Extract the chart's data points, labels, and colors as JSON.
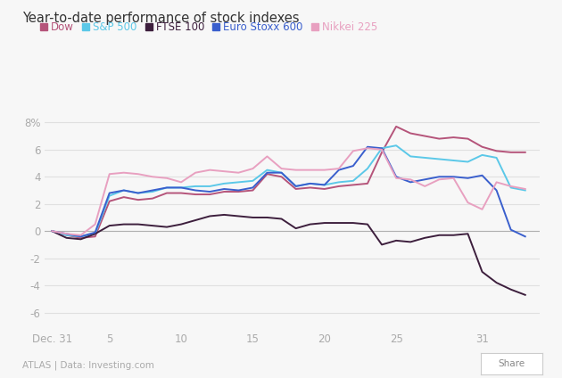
{
  "title": "Year-to-date performance of stock indexes",
  "legend": [
    "Dow",
    "S&P 500",
    "FTSE 100",
    "Euro Stoxx 600",
    "Nikkei 225"
  ],
  "colors": {
    "Dow": "#b5547a",
    "S&P 500": "#5bc8e8",
    "FTSE 100": "#3d1f3d",
    "Euro Stoxx 600": "#3a5fcd",
    "Nikkei 225": "#e8a0c0"
  },
  "x_ticks": [
    0,
    4,
    9,
    14,
    19,
    24,
    30,
    33
  ],
  "x_tick_labels": [
    "Dec. 31",
    "5",
    "10",
    "15",
    "20",
    "25",
    "31",
    ""
  ],
  "y_ticks": [
    -6,
    -4,
    -2,
    0,
    2,
    4,
    6,
    8
  ],
  "ylim": [
    -7.2,
    9.5
  ],
  "xlim": [
    -0.5,
    34
  ],
  "dow": [
    0,
    -0.3,
    -0.5,
    -0.4,
    2.2,
    2.5,
    2.3,
    2.4,
    2.8,
    2.8,
    2.7,
    2.7,
    2.9,
    2.9,
    3.0,
    4.2,
    4.0,
    3.1,
    3.2,
    3.1,
    3.3,
    3.4,
    3.5,
    5.8,
    7.7,
    7.2,
    7.0,
    6.8,
    6.9,
    6.8,
    6.2,
    5.9,
    5.8,
    5.8
  ],
  "sp500": [
    0,
    -0.3,
    -0.4,
    -0.2,
    2.6,
    3.0,
    2.8,
    2.9,
    3.2,
    3.2,
    3.3,
    3.3,
    3.5,
    3.6,
    3.7,
    4.5,
    4.3,
    3.3,
    3.5,
    3.4,
    3.6,
    3.7,
    4.6,
    6.1,
    6.3,
    5.5,
    5.4,
    5.3,
    5.2,
    5.1,
    5.6,
    5.4,
    3.2,
    3.0
  ],
  "ftse100": [
    0,
    -0.5,
    -0.6,
    -0.2,
    0.4,
    0.5,
    0.5,
    0.4,
    0.3,
    0.5,
    0.8,
    1.1,
    1.2,
    1.1,
    1.0,
    1.0,
    0.9,
    0.2,
    0.5,
    0.6,
    0.6,
    0.6,
    0.5,
    -1.0,
    -0.7,
    -0.8,
    -0.5,
    -0.3,
    -0.3,
    -0.2,
    -3.0,
    -3.8,
    -4.3,
    -4.7
  ],
  "eurostoxx600": [
    0,
    -0.2,
    -0.4,
    -0.1,
    2.8,
    3.0,
    2.8,
    3.0,
    3.2,
    3.2,
    3.0,
    2.9,
    3.1,
    3.0,
    3.2,
    4.3,
    4.3,
    3.3,
    3.5,
    3.4,
    4.5,
    4.8,
    6.2,
    6.1,
    4.0,
    3.6,
    3.8,
    4.0,
    4.0,
    3.9,
    4.1,
    3.0,
    0.1,
    -0.4
  ],
  "nikkei225": [
    0,
    -0.2,
    -0.3,
    0.5,
    4.2,
    4.3,
    4.2,
    4.0,
    3.9,
    3.6,
    4.3,
    4.5,
    4.4,
    4.3,
    4.6,
    5.5,
    4.6,
    4.5,
    4.5,
    4.5,
    4.6,
    5.9,
    6.1,
    6.0,
    3.9,
    3.8,
    3.3,
    3.8,
    3.9,
    2.1,
    1.6,
    3.6,
    3.3,
    3.1
  ],
  "footer_left": "ATLAS | Data: Investing.com",
  "footer_right": "Share",
  "background_color": "#f7f7f7",
  "plot_bg_color": "#f7f7f7"
}
